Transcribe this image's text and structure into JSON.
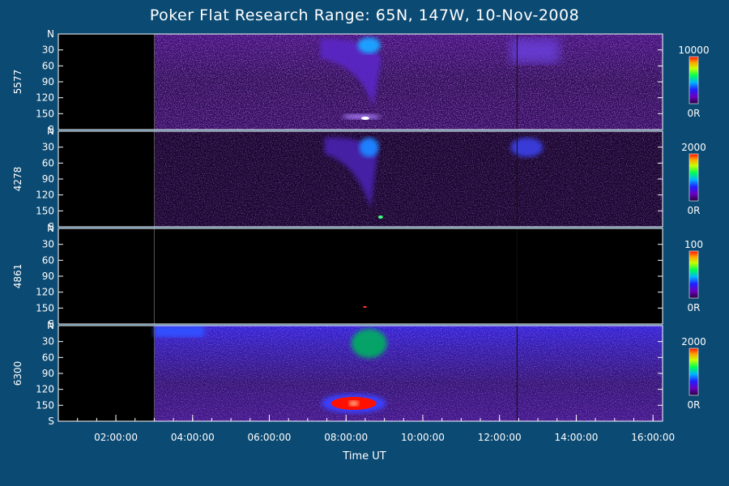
{
  "chart_data": {
    "type": "heatmap",
    "title": "Poker Flat Research Range: 65N, 147W, 10-Nov-2008",
    "xlabel": "Time UT",
    "x_ticks": [
      "02:00:00",
      "04:00:00",
      "06:00:00",
      "08:00:00",
      "10:00:00",
      "12:00:00",
      "14:00:00",
      "16:00:00"
    ],
    "xlim_hours": [
      0.5,
      16.25
    ],
    "y_ticks": [
      "N",
      "30",
      "60",
      "90",
      "120",
      "150",
      "S"
    ],
    "ylim": [
      0,
      180
    ],
    "panels": [
      {
        "name": "5577",
        "scale_max": "10000",
        "scale_min": "0R"
      },
      {
        "name": "4278",
        "scale_max": "2000",
        "scale_min": "0R"
      },
      {
        "name": "4861",
        "scale_max": "100",
        "scale_min": "0R"
      },
      {
        "name": "6300",
        "scale_max": "2000",
        "scale_min": "0R"
      }
    ],
    "colormap": [
      "#000000",
      "#3a0050",
      "#6a00a0",
      "#1f1fff",
      "#00c8ff",
      "#00ff60",
      "#c8ff00",
      "#ffb000",
      "#ff2000"
    ]
  }
}
